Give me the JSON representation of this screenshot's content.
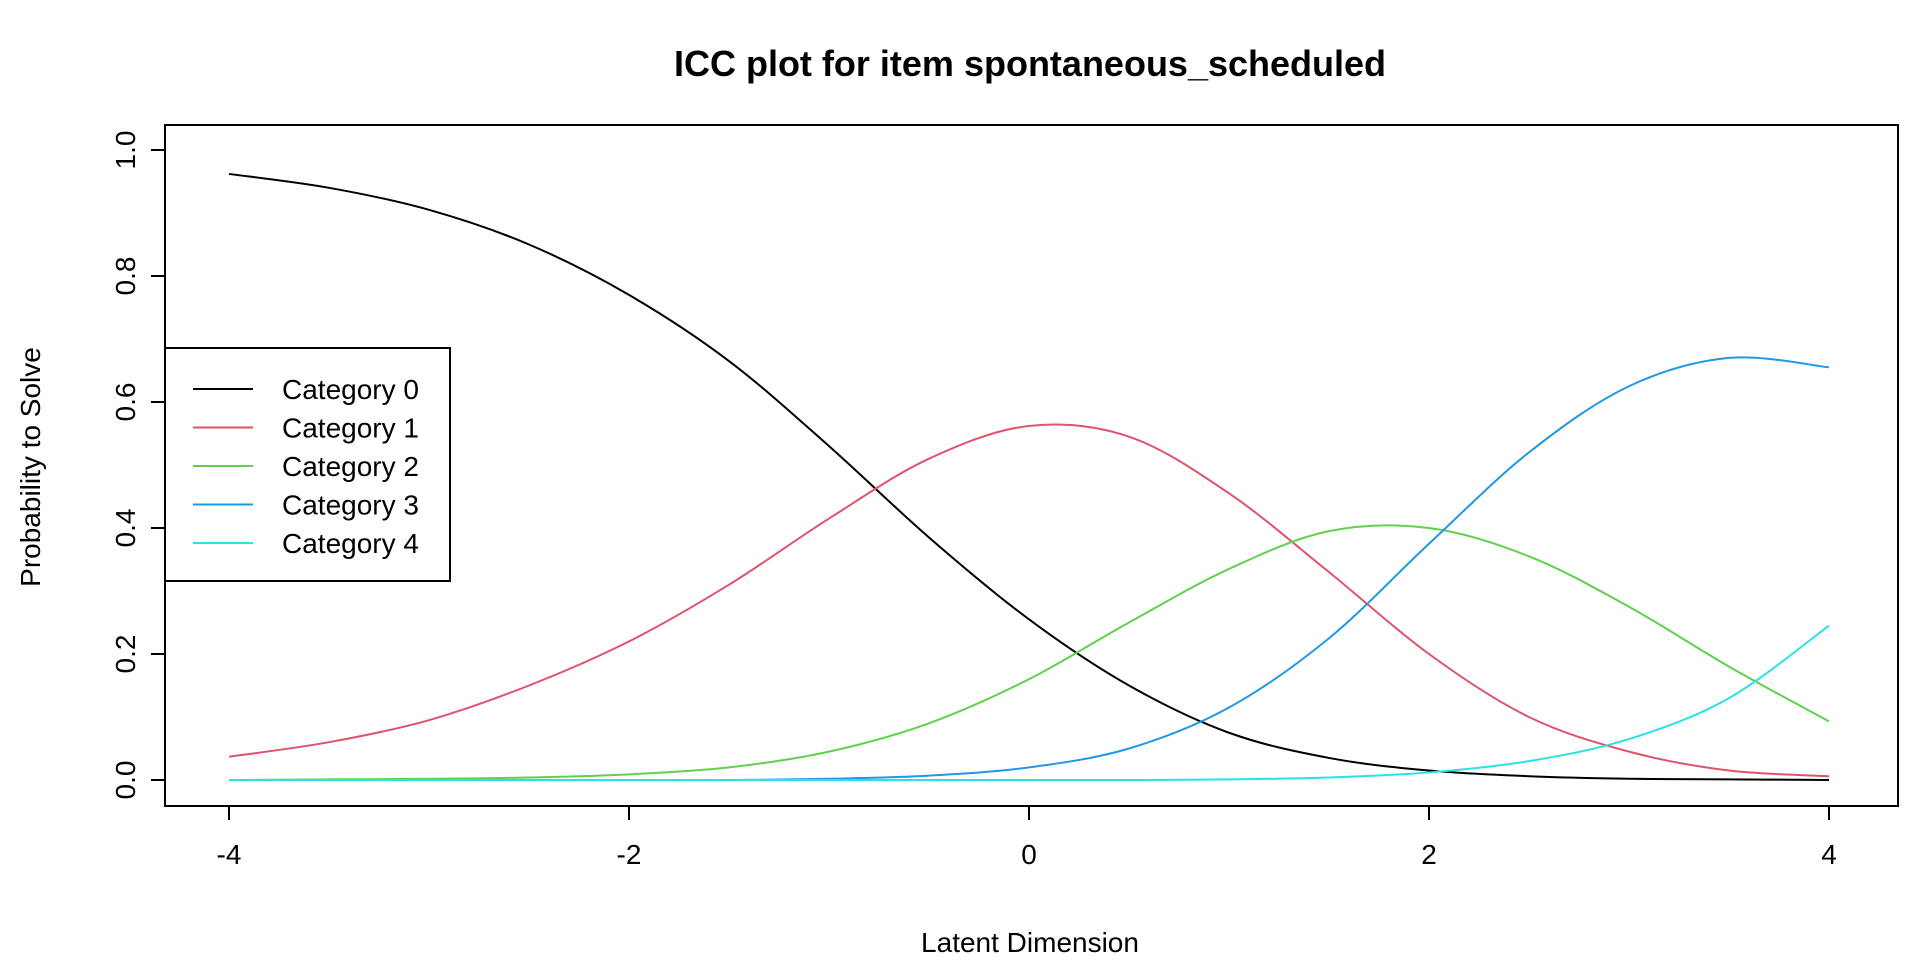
{
  "chart_data": {
    "type": "line",
    "title": "ICC plot for item spontaneous_scheduled",
    "xlabel": "Latent Dimension",
    "ylabel": "Probability to Solve",
    "xlim": [
      -4,
      4
    ],
    "ylim": [
      0,
      1
    ],
    "x_ticks": [
      "-4",
      "-2",
      "0",
      "2",
      "4"
    ],
    "y_ticks": [
      "0.0",
      "0.2",
      "0.4",
      "0.6",
      "0.8",
      "1.0"
    ],
    "grid": false,
    "legend_position": "left",
    "x": [
      -4,
      -3.5,
      -3,
      -2.5,
      -2,
      -1.5,
      -1,
      -0.5,
      0,
      0.5,
      1,
      1.5,
      2,
      2.5,
      3,
      3.5,
      4
    ],
    "series": [
      {
        "name": "Category 0",
        "color": "#000000",
        "values": [
          0.962,
          0.94,
          0.905,
          0.85,
          0.77,
          0.665,
          0.53,
          0.385,
          0.255,
          0.15,
          0.075,
          0.035,
          0.015,
          0.006,
          0.002,
          0.001,
          0.0
        ]
      },
      {
        "name": "Category 1",
        "color": "#DF536B",
        "values": [
          0.037,
          0.06,
          0.095,
          0.15,
          0.22,
          0.31,
          0.415,
          0.51,
          0.562,
          0.545,
          0.455,
          0.33,
          0.2,
          0.1,
          0.045,
          0.015,
          0.006
        ]
      },
      {
        "name": "Category 2",
        "color": "#61D04F",
        "values": [
          0.0,
          0.001,
          0.002,
          0.004,
          0.009,
          0.02,
          0.045,
          0.09,
          0.16,
          0.25,
          0.335,
          0.395,
          0.4,
          0.355,
          0.275,
          0.18,
          0.093
        ]
      },
      {
        "name": "Category 3",
        "color": "#2297E6",
        "values": [
          0.0,
          0.0,
          0.0,
          0.0,
          0.0,
          0.0,
          0.002,
          0.007,
          0.02,
          0.05,
          0.115,
          0.225,
          0.375,
          0.52,
          0.625,
          0.67,
          0.655
        ]
      },
      {
        "name": "Category 4",
        "color": "#28E2E5",
        "values": [
          0.0,
          0.0,
          0.0,
          0.0,
          0.0,
          0.0,
          0.0,
          0.0,
          0.0,
          0.0,
          0.001,
          0.004,
          0.012,
          0.03,
          0.065,
          0.13,
          0.245
        ]
      }
    ]
  }
}
